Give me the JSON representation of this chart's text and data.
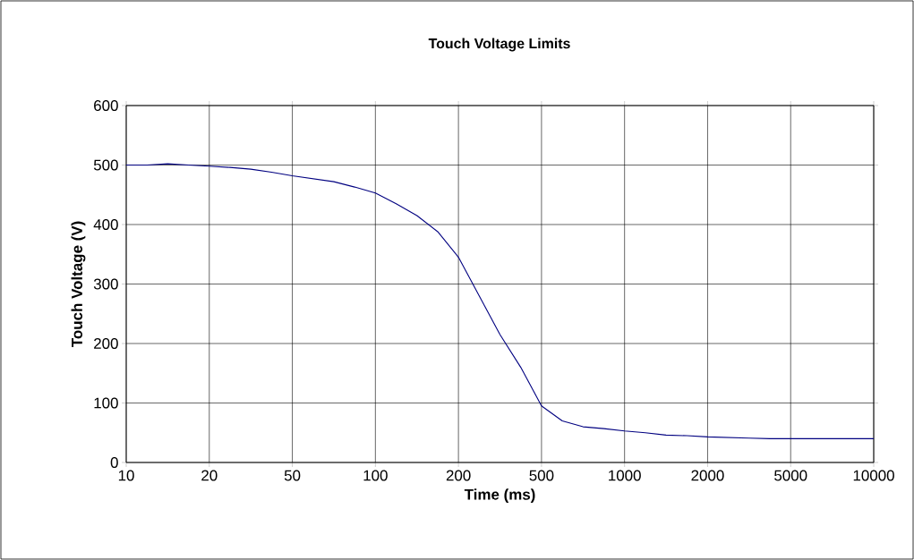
{
  "chart_data": {
    "type": "line",
    "title": "Touch Voltage Limits",
    "xlabel": "Time (ms)",
    "ylabel": "Touch Voltage (V)",
    "categories": [
      "10",
      null,
      null,
      null,
      "20",
      null,
      null,
      null,
      "50",
      null,
      null,
      null,
      "100",
      null,
      null,
      null,
      "200",
      null,
      null,
      null,
      "500",
      null,
      null,
      null,
      "1000",
      null,
      null,
      null,
      "2000",
      null,
      null,
      null,
      "5000",
      null,
      null,
      null,
      "10000"
    ],
    "values": [
      500,
      500,
      502,
      500,
      498,
      496,
      493,
      488,
      482,
      477,
      472,
      463,
      453,
      435,
      415,
      388,
      345,
      280,
      215,
      160,
      95,
      70,
      60,
      57,
      53,
      50,
      46,
      45,
      43,
      42,
      41,
      40,
      40,
      40,
      40,
      40,
      40
    ],
    "color": "#000080",
    "ylim": [
      0,
      600
    ],
    "yticks": [
      0,
      100,
      200,
      300,
      400,
      500,
      600
    ],
    "grid": true
  }
}
